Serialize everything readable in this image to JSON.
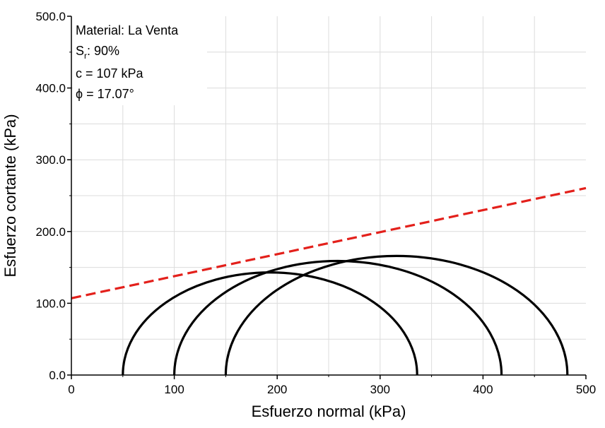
{
  "chart_data": {
    "type": "line",
    "xlabel": "Esfuerzo normal (kPa)",
    "ylabel": "Esfuerzo cortante (kPa)",
    "xlim": [
      0,
      500
    ],
    "ylim": [
      0,
      500
    ],
    "x_ticks": [
      "0",
      "100",
      "200",
      "300",
      "400",
      "500"
    ],
    "y_ticks": [
      "0.0",
      "100.0",
      "200.0",
      "300.0",
      "400.0",
      "500.0"
    ],
    "grid": true,
    "annotation": {
      "material": "Material: La Venta",
      "sr_prefix": "S",
      "sr_sub": "r",
      "sr_value": ": 90%",
      "cohesion": "c = 107 kPa",
      "phi": "ϕ = 17.07°"
    },
    "mohr_circles": [
      {
        "sigma3": 50,
        "sigma1": 336
      },
      {
        "sigma3": 100,
        "sigma1": 418
      },
      {
        "sigma3": 150,
        "sigma1": 482
      }
    ],
    "envelope": {
      "c": 107,
      "phi_deg": 17.07,
      "style": "dashed",
      "color": "#e3201b"
    },
    "circle_color": "#000000"
  }
}
